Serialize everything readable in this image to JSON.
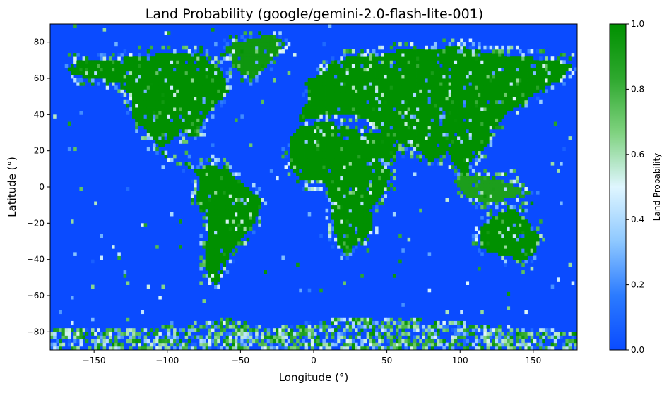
{
  "chart_data": {
    "type": "heatmap",
    "title": "Land Probability (google/gemini-2.0-flash-lite-001)",
    "xlabel": "Longitude (°)",
    "ylabel": "Latitude (°)",
    "xlim": [
      -180,
      180
    ],
    "ylim": [
      -90,
      90
    ],
    "x_ticks": [
      -150,
      -100,
      -50,
      0,
      50,
      100,
      150
    ],
    "x_tick_labels": [
      "−150",
      "−100",
      "−50",
      "0",
      "50",
      "100",
      "150"
    ],
    "y_ticks": [
      -80,
      -60,
      -40,
      -20,
      0,
      20,
      40,
      60,
      80
    ],
    "y_tick_labels": [
      "−80",
      "−60",
      "−40",
      "−20",
      "0",
      "20",
      "40",
      "60",
      "80"
    ],
    "grid": false,
    "colorbar": {
      "label": "Land Probability",
      "range": [
        0,
        1
      ],
      "ticks": [
        0,
        0.2,
        0.4,
        0.6,
        0.8,
        1.0
      ],
      "tick_labels": [
        "0.0",
        "0.2",
        "0.4",
        "0.6",
        "0.8",
        "1.0"
      ],
      "colors": [
        "#0a4bff",
        "#2b7bff",
        "#8ec8ff",
        "#dff6ff",
        "#7fd27f",
        "#2ea82e",
        "#009000"
      ]
    },
    "land_regions": [
      {
        "region": "North America",
        "polygon": [
          [
            -168,
            66
          ],
          [
            -160,
            70
          ],
          [
            -140,
            70
          ],
          [
            -120,
            72
          ],
          [
            -95,
            74
          ],
          [
            -80,
            74
          ],
          [
            -62,
            64
          ],
          [
            -58,
            52
          ],
          [
            -70,
            44
          ],
          [
            -76,
            36
          ],
          [
            -80,
            28
          ],
          [
            -90,
            30
          ],
          [
            -97,
            26
          ],
          [
            -105,
            20
          ],
          [
            -100,
            16
          ],
          [
            -92,
            16
          ],
          [
            -84,
            10
          ],
          [
            -79,
            8
          ],
          [
            -86,
            14
          ],
          [
            -98,
            16
          ],
          [
            -106,
            22
          ],
          [
            -112,
            30
          ],
          [
            -118,
            34
          ],
          [
            -124,
            40
          ],
          [
            -125,
            50
          ],
          [
            -135,
            58
          ],
          [
            -150,
            60
          ],
          [
            -165,
            62
          ]
        ],
        "probability": 1.0
      },
      {
        "region": "Greenland",
        "polygon": [
          [
            -60,
            78
          ],
          [
            -30,
            84
          ],
          [
            -20,
            80
          ],
          [
            -28,
            70
          ],
          [
            -42,
            60
          ],
          [
            -52,
            64
          ],
          [
            -58,
            72
          ]
        ],
        "probability": 0.95
      },
      {
        "region": "South America",
        "polygon": [
          [
            -80,
            10
          ],
          [
            -72,
            12
          ],
          [
            -60,
            10
          ],
          [
            -50,
            2
          ],
          [
            -36,
            -6
          ],
          [
            -40,
            -20
          ],
          [
            -48,
            -28
          ],
          [
            -58,
            -38
          ],
          [
            -66,
            -54
          ],
          [
            -72,
            -50
          ],
          [
            -74,
            -40
          ],
          [
            -72,
            -20
          ],
          [
            -80,
            -6
          ],
          [
            -78,
            2
          ]
        ],
        "probability": 1.0
      },
      {
        "region": "Eurasia",
        "polygon": [
          [
            -10,
            36
          ],
          [
            -8,
            44
          ],
          [
            -2,
            48
          ],
          [
            -6,
            58
          ],
          [
            5,
            62
          ],
          [
            10,
            68
          ],
          [
            25,
            72
          ],
          [
            45,
            72
          ],
          [
            60,
            76
          ],
          [
            80,
            76
          ],
          [
            100,
            78
          ],
          [
            120,
            74
          ],
          [
            140,
            72
          ],
          [
            160,
            70
          ],
          [
            178,
            68
          ],
          [
            170,
            60
          ],
          [
            160,
            56
          ],
          [
            145,
            48
          ],
          [
            130,
            40
          ],
          [
            122,
            30
          ],
          [
            118,
            22
          ],
          [
            108,
            16
          ],
          [
            104,
            6
          ],
          [
            98,
            10
          ],
          [
            92,
            20
          ],
          [
            80,
            14
          ],
          [
            72,
            20
          ],
          [
            60,
            24
          ],
          [
            50,
            28
          ],
          [
            40,
            36
          ],
          [
            30,
            40
          ],
          [
            20,
            40
          ],
          [
            10,
            40
          ],
          [
            0,
            38
          ]
        ],
        "probability": 1.0
      },
      {
        "region": "Africa",
        "polygon": [
          [
            -17,
            20
          ],
          [
            -15,
            28
          ],
          [
            -8,
            34
          ],
          [
            10,
            36
          ],
          [
            30,
            32
          ],
          [
            34,
            28
          ],
          [
            44,
            12
          ],
          [
            52,
            10
          ],
          [
            50,
            -2
          ],
          [
            40,
            -12
          ],
          [
            40,
            -24
          ],
          [
            32,
            -30
          ],
          [
            20,
            -36
          ],
          [
            16,
            -30
          ],
          [
            12,
            -14
          ],
          [
            10,
            0
          ],
          [
            6,
            4
          ],
          [
            -8,
            4
          ],
          [
            -16,
            10
          ]
        ],
        "probability": 1.0
      },
      {
        "region": "Arabia",
        "polygon": [
          [
            34,
            30
          ],
          [
            46,
            30
          ],
          [
            58,
            24
          ],
          [
            56,
            16
          ],
          [
            44,
            12
          ],
          [
            38,
            20
          ]
        ],
        "probability": 1.0
      },
      {
        "region": "Australia",
        "polygon": [
          [
            114,
            -22
          ],
          [
            114,
            -34
          ],
          [
            130,
            -38
          ],
          [
            142,
            -40
          ],
          [
            150,
            -38
          ],
          [
            154,
            -28
          ],
          [
            146,
            -18
          ],
          [
            136,
            -12
          ],
          [
            128,
            -14
          ]
        ],
        "probability": 1.0
      },
      {
        "region": "Southeast Asia Islands",
        "polygon": [
          [
            96,
            4
          ],
          [
            106,
            -6
          ],
          [
            120,
            -8
          ],
          [
            140,
            -6
          ],
          [
            150,
            -4
          ],
          [
            140,
            0
          ],
          [
            125,
            4
          ],
          [
            115,
            6
          ],
          [
            105,
            6
          ]
        ],
        "probability": 0.9
      },
      {
        "region": "Antarctica",
        "polygon": [
          [
            -180,
            -90
          ],
          [
            180,
            -90
          ],
          [
            180,
            -80
          ],
          [
            120,
            -76
          ],
          [
            60,
            -72
          ],
          [
            20,
            -72
          ],
          [
            -30,
            -78
          ],
          [
            -60,
            -72
          ],
          [
            -90,
            -76
          ],
          [
            -130,
            -78
          ],
          [
            -180,
            -78
          ]
        ],
        "probability": 0.25
      }
    ]
  }
}
